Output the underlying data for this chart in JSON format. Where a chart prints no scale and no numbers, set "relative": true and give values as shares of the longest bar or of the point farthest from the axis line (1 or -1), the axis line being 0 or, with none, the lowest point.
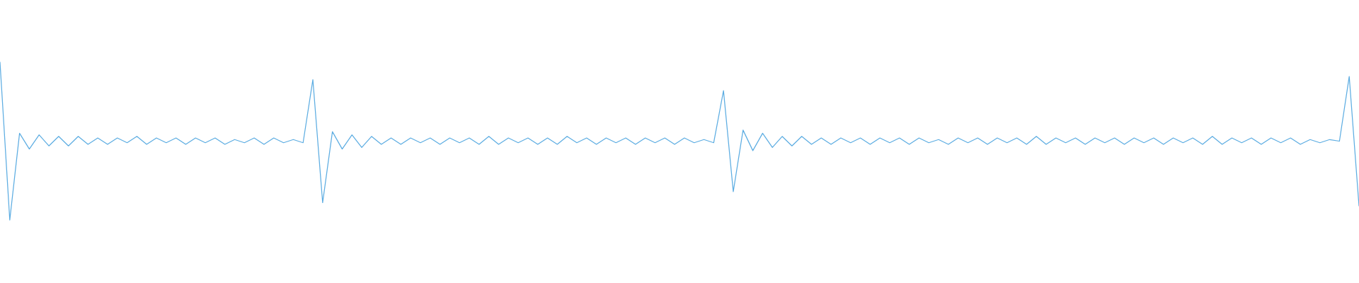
{
  "chart_data": {
    "type": "line",
    "relative": true,
    "categories": [
      null,
      null,
      null,
      null,
      null,
      null,
      null,
      null,
      null,
      null,
      null,
      null,
      null,
      null,
      null,
      null,
      null,
      null,
      null,
      null,
      null,
      null,
      null,
      null,
      null,
      null,
      null,
      null,
      null,
      null,
      null,
      null,
      null,
      null,
      null,
      null,
      null,
      null,
      null,
      null,
      null,
      null,
      null,
      null,
      null,
      null,
      null,
      null,
      null,
      null,
      null,
      null,
      null,
      null,
      null,
      null,
      null,
      null,
      null,
      null,
      null,
      null,
      null,
      null,
      null,
      null,
      null,
      null,
      null,
      null,
      null,
      null,
      null,
      null,
      null,
      null,
      null,
      null,
      null,
      null,
      null,
      null,
      null,
      null,
      null,
      null,
      null,
      null,
      null,
      null,
      null,
      null,
      null,
      null,
      null,
      null,
      null,
      null,
      null,
      null,
      null,
      null,
      null,
      null,
      null,
      null,
      null,
      null,
      null,
      null,
      null,
      null,
      null,
      null,
      null,
      null,
      null,
      null,
      null,
      null,
      null,
      null,
      null,
      null,
      null,
      null,
      null,
      null,
      null,
      null,
      null,
      null,
      null,
      null,
      null,
      null,
      null,
      null,
      null,
      null
    ],
    "series": [
      {
        "color": "#5dade2",
        "values": [
          1.0,
          0.0,
          0.55,
          0.45,
          0.54,
          0.47,
          0.53,
          0.47,
          0.53,
          0.48,
          0.52,
          0.48,
          0.52,
          0.49,
          0.53,
          0.48,
          0.52,
          0.49,
          0.52,
          0.48,
          0.52,
          0.49,
          0.52,
          0.48,
          0.51,
          0.49,
          0.52,
          0.48,
          0.52,
          0.49,
          0.51,
          0.49,
          0.89,
          0.11,
          0.56,
          0.45,
          0.54,
          0.46,
          0.53,
          0.48,
          0.52,
          0.48,
          0.52,
          0.49,
          0.52,
          0.48,
          0.52,
          0.49,
          0.52,
          0.48,
          0.53,
          0.48,
          0.52,
          0.49,
          0.52,
          0.48,
          0.52,
          0.48,
          0.53,
          0.49,
          0.52,
          0.48,
          0.52,
          0.49,
          0.52,
          0.48,
          0.52,
          0.49,
          0.52,
          0.48,
          0.52,
          0.49,
          0.51,
          0.49,
          0.82,
          0.18,
          0.57,
          0.44,
          0.55,
          0.46,
          0.53,
          0.47,
          0.53,
          0.48,
          0.52,
          0.48,
          0.52,
          0.49,
          0.52,
          0.48,
          0.52,
          0.49,
          0.52,
          0.48,
          0.52,
          0.49,
          0.51,
          0.48,
          0.52,
          0.49,
          0.52,
          0.48,
          0.52,
          0.49,
          0.52,
          0.48,
          0.53,
          0.48,
          0.52,
          0.49,
          0.52,
          0.48,
          0.52,
          0.49,
          0.52,
          0.48,
          0.52,
          0.49,
          0.52,
          0.48,
          0.52,
          0.49,
          0.52,
          0.48,
          0.53,
          0.48,
          0.52,
          0.49,
          0.52,
          0.48,
          0.52,
          0.49,
          0.52,
          0.48,
          0.51,
          0.49,
          0.51,
          0.5,
          0.91,
          0.09
        ]
      }
    ]
  }
}
